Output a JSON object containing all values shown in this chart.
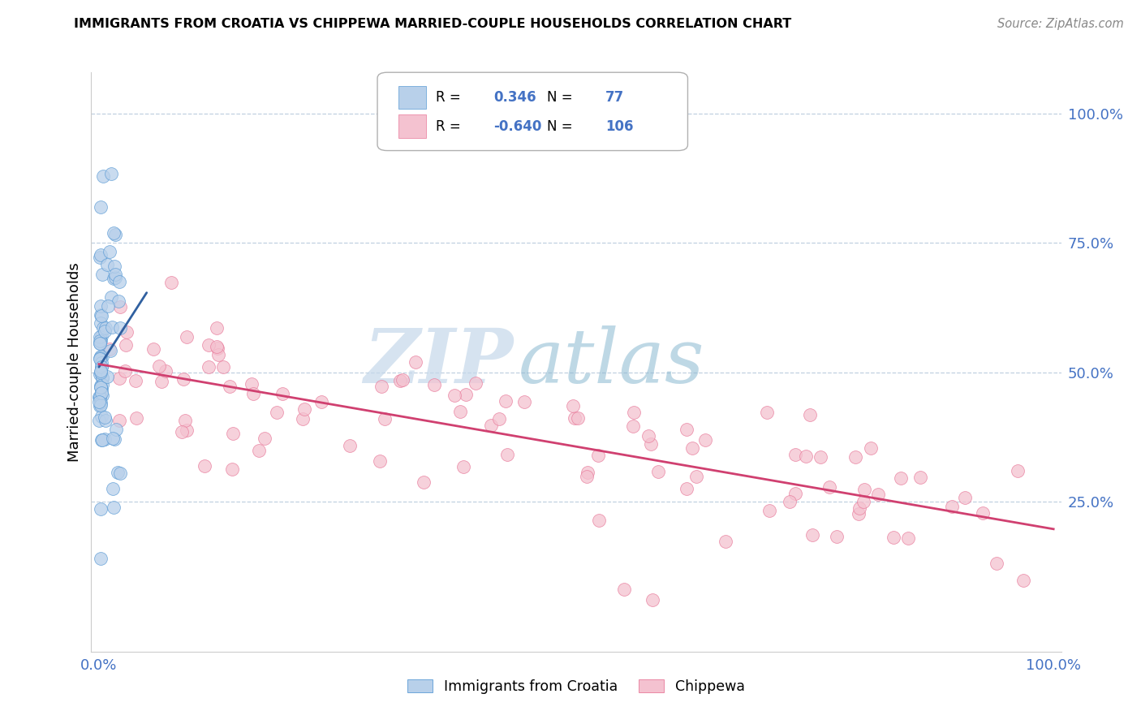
{
  "title": "IMMIGRANTS FROM CROATIA VS CHIPPEWA MARRIED-COUPLE HOUSEHOLDS CORRELATION CHART",
  "source": "Source: ZipAtlas.com",
  "ylabel": "Married-couple Households",
  "right_yticks": [
    "25.0%",
    "50.0%",
    "75.0%",
    "100.0%"
  ],
  "right_ytick_vals": [
    0.25,
    0.5,
    0.75,
    1.0
  ],
  "legend_blue_r": "0.346",
  "legend_blue_n": "77",
  "legend_pink_r": "-0.640",
  "legend_pink_n": "106",
  "blue_fill_color": "#b8d0ea",
  "blue_edge_color": "#5b9bd5",
  "pink_fill_color": "#f4c2d0",
  "pink_edge_color": "#e87a9a",
  "blue_line_color": "#3060a0",
  "pink_line_color": "#d04070",
  "watermark_zip": "ZIP",
  "watermark_atlas": "atlas",
  "watermark_color_zip": "#b8cfe0",
  "watermark_color_atlas": "#90b8d0",
  "grid_color": "#c0d0e0",
  "xlim_min": 0.0,
  "xlim_max": 1.0,
  "ylim_min": 0.0,
  "ylim_max": 1.05
}
